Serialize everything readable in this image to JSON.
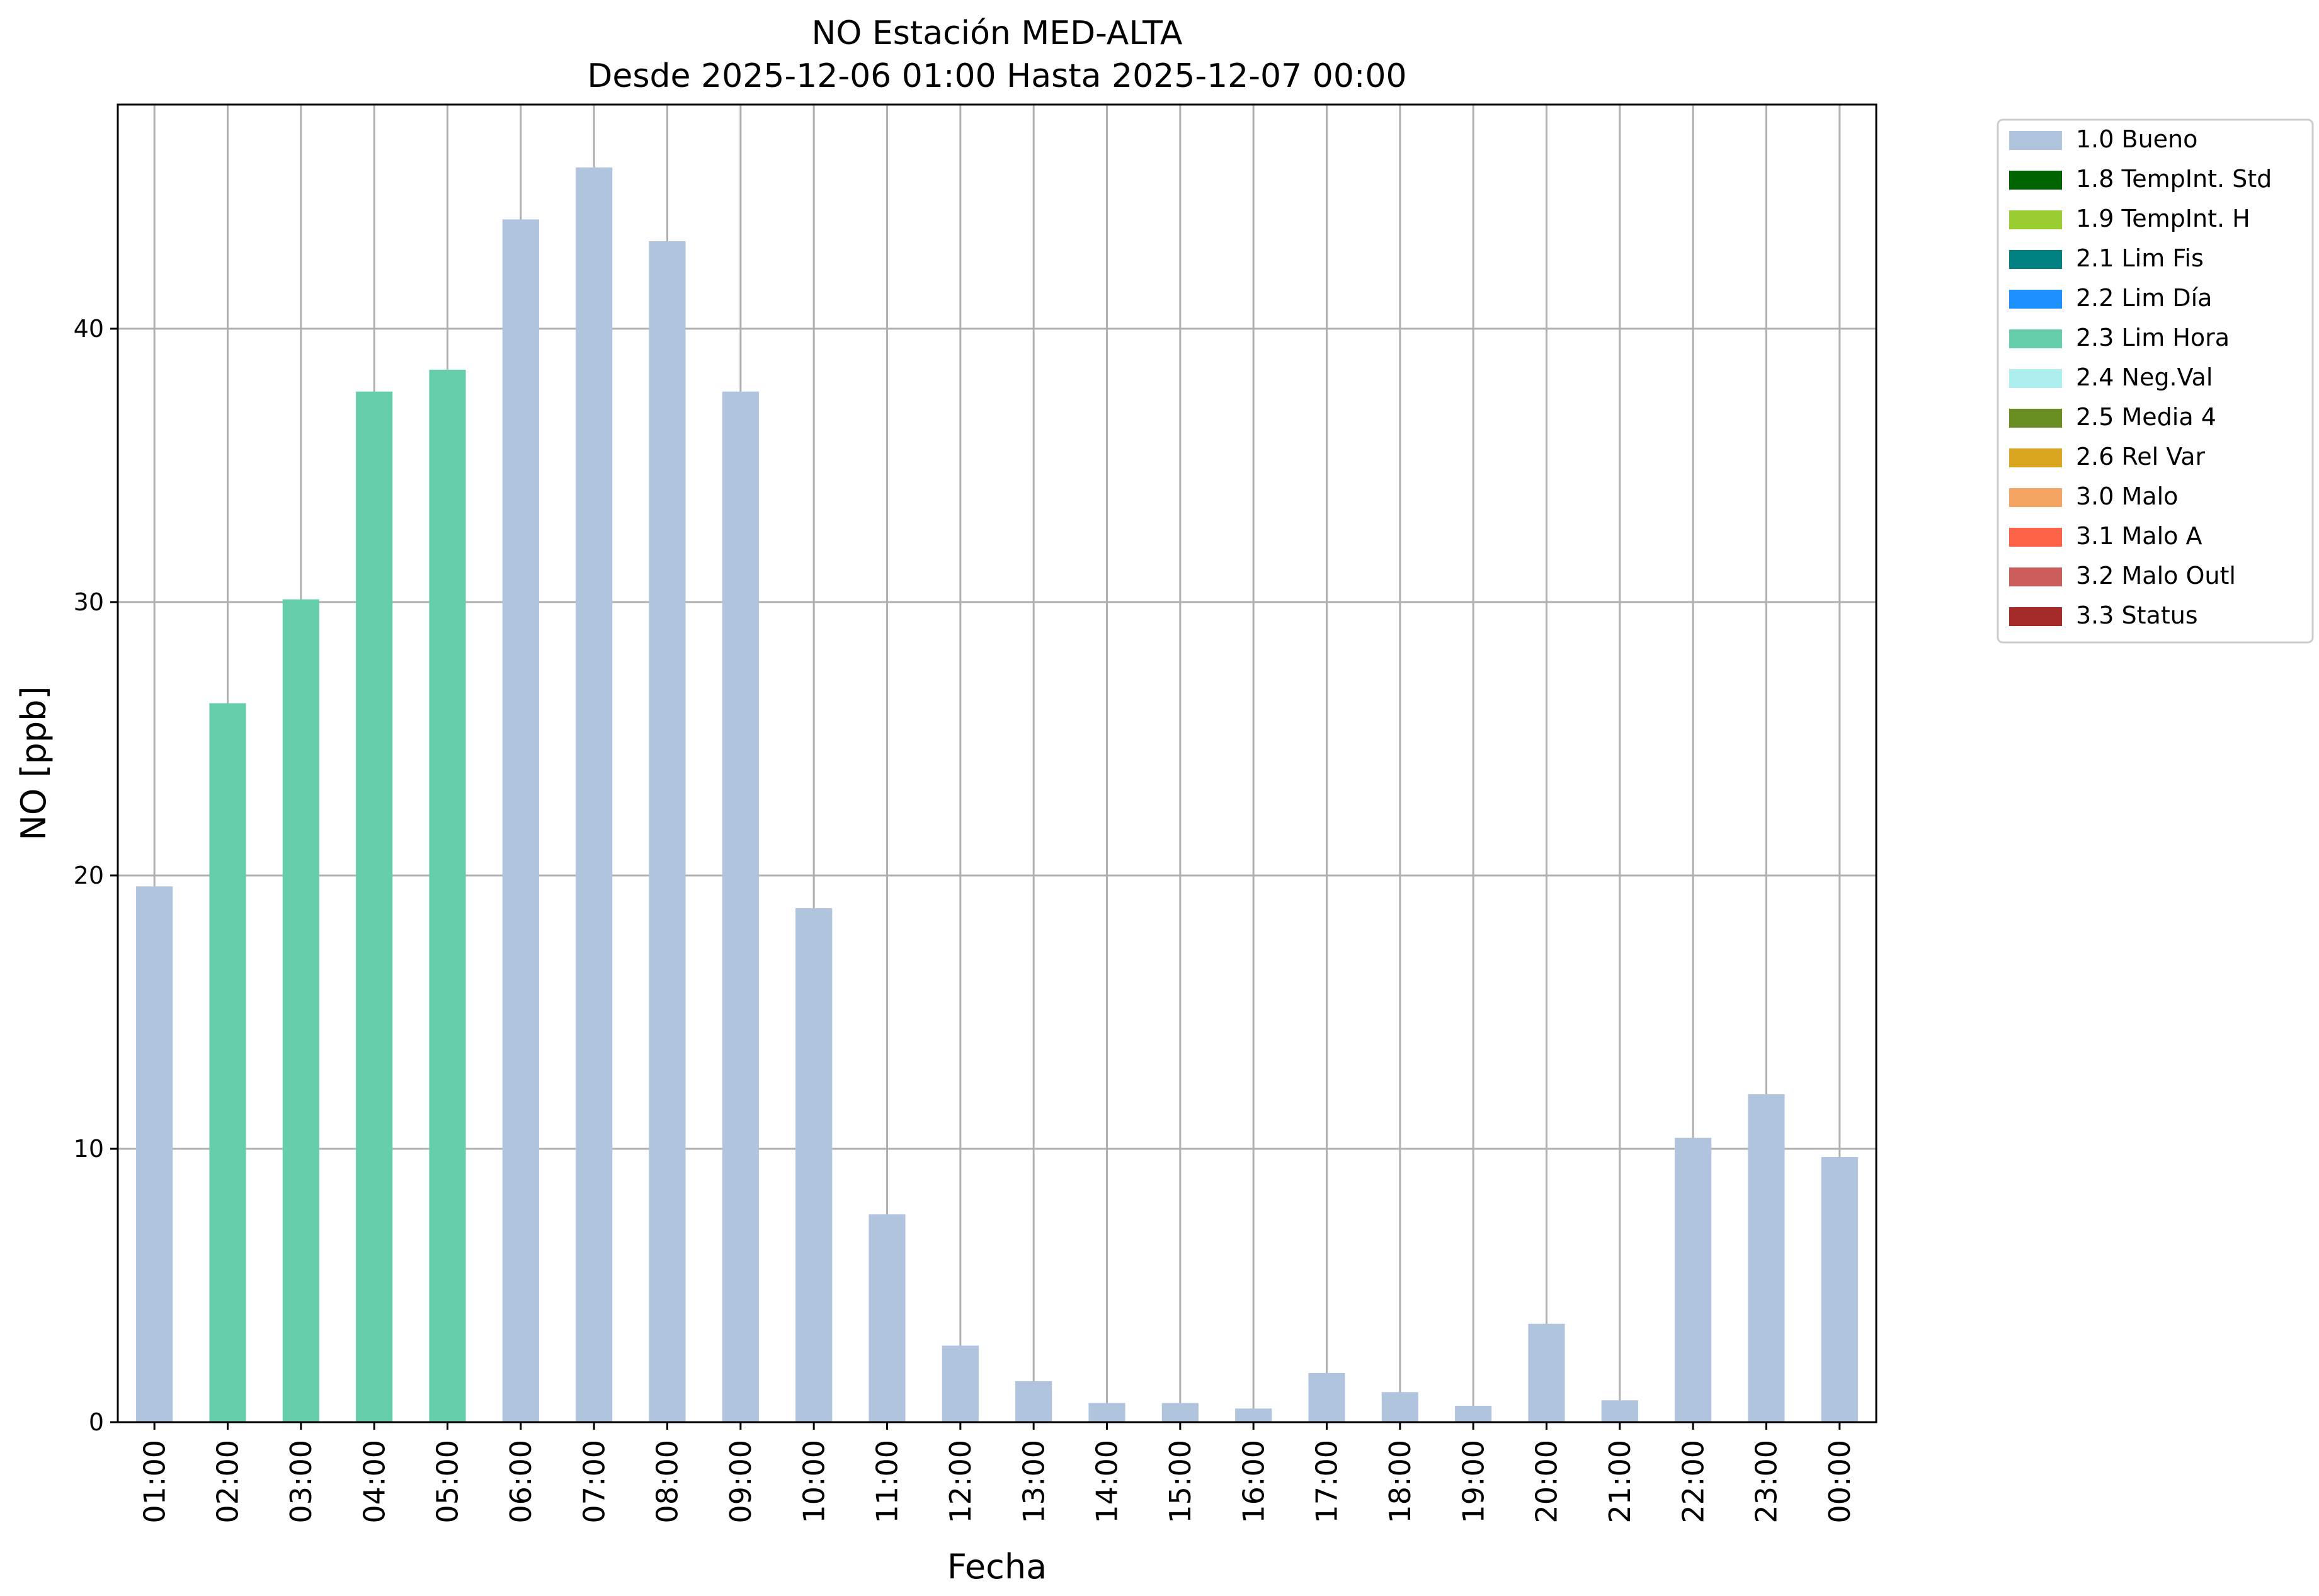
{
  "chart_data": {
    "type": "bar",
    "title": "NO Estación MED-ALTA",
    "subtitle": "Desde 2025-12-06 01:00 Hasta 2025-12-07 00:00",
    "xlabel": "Fecha",
    "ylabel": "NO [ppb]",
    "ylim": [
      0,
      48.2
    ],
    "yticks": [
      "0",
      "10",
      "20",
      "30",
      "40"
    ],
    "grid": true,
    "legend_position": "outside top-right",
    "categories": [
      "01:00",
      "02:00",
      "03:00",
      "04:00",
      "05:00",
      "06:00",
      "07:00",
      "08:00",
      "09:00",
      "10:00",
      "11:00",
      "12:00",
      "13:00",
      "14:00",
      "15:00",
      "16:00",
      "17:00",
      "18:00",
      "19:00",
      "20:00",
      "21:00",
      "22:00",
      "23:00",
      "00:00"
    ],
    "values": [
      19.6,
      26.3,
      30.1,
      37.7,
      38.5,
      44.0,
      45.9,
      43.2,
      37.7,
      18.8,
      7.6,
      2.8,
      1.5,
      0.7,
      0.7,
      0.5,
      1.8,
      1.1,
      0.6,
      3.6,
      0.8,
      10.4,
      12.0,
      9.7
    ],
    "flags": [
      "1.0 Bueno",
      "2.3 Lim Hora",
      "2.3 Lim Hora",
      "2.3 Lim Hora",
      "2.3 Lim Hora",
      "1.0 Bueno",
      "1.0 Bueno",
      "1.0 Bueno",
      "1.0 Bueno",
      "1.0 Bueno",
      "1.0 Bueno",
      "1.0 Bueno",
      "1.0 Bueno",
      "1.0 Bueno",
      "1.0 Bueno",
      "1.0 Bueno",
      "1.0 Bueno",
      "1.0 Bueno",
      "1.0 Bueno",
      "1.0 Bueno",
      "1.0 Bueno",
      "1.0 Bueno",
      "1.0 Bueno",
      "1.0 Bueno"
    ],
    "legend": [
      {
        "label": "1.0 Bueno",
        "color": "#b0c4de"
      },
      {
        "label": "1.8 TempInt. Std",
        "color": "#006400"
      },
      {
        "label": "1.9 TempInt. H",
        "color": "#9acd32"
      },
      {
        "label": "2.1 Lim Fis",
        "color": "#008080"
      },
      {
        "label": "2.2 Lim Día",
        "color": "#1e90ff"
      },
      {
        "label": "2.3 Lim Hora",
        "color": "#66cdaa"
      },
      {
        "label": "2.4 Neg.Val",
        "color": "#afeeee"
      },
      {
        "label": "2.5 Media 4",
        "color": "#6b8e23"
      },
      {
        "label": "2.6 Rel Var",
        "color": "#daa520"
      },
      {
        "label": "3.0 Malo",
        "color": "#f4a460"
      },
      {
        "label": "3.1 Malo A",
        "color": "#ff6347"
      },
      {
        "label": "3.2 Malo Outl",
        "color": "#cd5c5c"
      },
      {
        "label": "3.3 Status",
        "color": "#a52a2a"
      }
    ]
  }
}
